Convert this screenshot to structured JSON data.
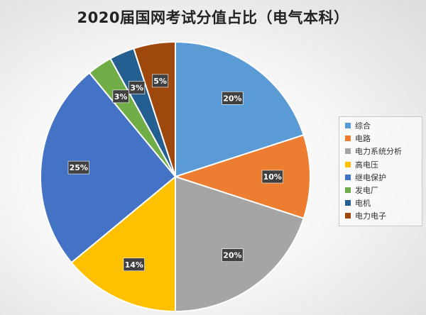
{
  "chart_data": {
    "type": "pie",
    "title": "2020届国网考试分值占比（电气本科）",
    "series": [
      {
        "name": "综合",
        "value": 20,
        "label": "20%",
        "color": "#5B9BD5"
      },
      {
        "name": "电路",
        "value": 10,
        "label": "10%",
        "color": "#ED7D31"
      },
      {
        "name": "电力系统分析",
        "value": 20,
        "label": "20%",
        "color": "#A5A5A5"
      },
      {
        "name": "高电压",
        "value": 14,
        "label": "14%",
        "color": "#FFC000"
      },
      {
        "name": "继电保护",
        "value": 25,
        "label": "25%",
        "color": "#4472C4"
      },
      {
        "name": "发电厂",
        "value": 3,
        "label": "3%",
        "color": "#70AD47"
      },
      {
        "name": "电机",
        "value": 3,
        "label": "3%",
        "color": "#255E91"
      },
      {
        "name": "电力电子",
        "value": 5,
        "label": "5%",
        "color": "#9E480E"
      }
    ],
    "legend": "right",
    "start": "top-clockwise"
  }
}
